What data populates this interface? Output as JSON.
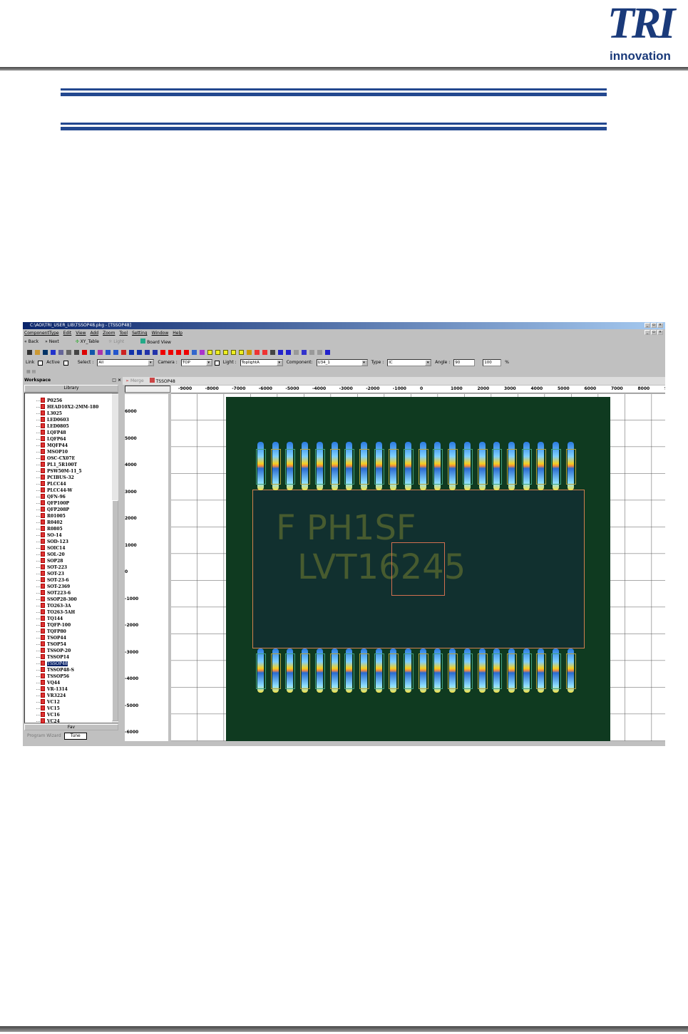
{
  "header": {
    "logo_main": "TRI",
    "logo_sub": "innovation"
  },
  "app": {
    "title": "C:\\AOI\\TRI_USER_LIB\\TSSOP48.pkg - [TSSOP48]",
    "menu": [
      "ComponentType",
      "Edit",
      "View",
      "Add",
      "Zoom",
      "Tool",
      "Setting",
      "Window",
      "Help"
    ],
    "nav": {
      "back": "Back",
      "next": "Next",
      "xy_table": "XY_Table",
      "light": "Light",
      "board_view": "Board View"
    },
    "toolbar_icons": [
      "new-icon",
      "open-icon",
      "save-icon",
      "refresh-icon",
      "cut-icon",
      "copy-icon",
      "paste-icon",
      "delete-icon",
      "move-icon",
      "clone-icon",
      "undo-icon",
      "redo-icon",
      "target-icon",
      "fit-icon",
      "fit-all-icon",
      "zoom-in-icon",
      "zoom-out-icon",
      "arrow-up-icon",
      "arrow-down-icon",
      "arrow-left-icon",
      "arrow-right-icon",
      "group-icon",
      "link-icon",
      "box1-icon",
      "box2-icon",
      "box3-icon",
      "box4-icon",
      "box5-icon",
      "draw-icon",
      "measure-icon",
      "pin-icon",
      "copy-pad-icon",
      "pl-icon",
      "percent-icon",
      "m-icon",
      "xy-icon",
      "expand-icon",
      "collapse-icon",
      "cursor-icon"
    ],
    "fields": {
      "link": "Link",
      "active": "Active",
      "select_label": "Select :",
      "select_value": "All",
      "camera_label": "Camera :",
      "camera_value": "TOP",
      "light_label": "Light :",
      "light_value": "ToplightA",
      "component_label": "Component:",
      "component_value": "U34_1",
      "type_label": "Type :",
      "type_value": "IC",
      "angle_label": "Angle :",
      "angle_value": "90",
      "scale_value": "100",
      "scale_unit": "%"
    },
    "workspace": {
      "title": "Workspace",
      "library": "Library",
      "fav": "Fav",
      "tabs": [
        "Program Wizard",
        "Tune"
      ],
      "items": [
        "P0256",
        "HEAD10X2-2MM-180",
        "L3025",
        "LED0603",
        "LED0805",
        "LQFP48",
        "LQFP64",
        "MQFP44",
        "MSOP10",
        "OSC-CX07E",
        "PL1_5R100T",
        "PSW50M-11_5",
        "PCIBUS-32",
        "PLCC44",
        "PLCC44-W",
        "QFN-96",
        "QFP100P",
        "QFP208P",
        "R01005",
        "R0402",
        "R0805",
        "SO-14",
        "SOD-123",
        "SOIC14",
        "SOL-20",
        "SOP28",
        "SOT-223",
        "SOT-23",
        "SOT-23-6",
        "SOT-2369",
        "SOT223-6",
        "SSOP28-300",
        "TO263-3A",
        "TO263-5AH",
        "TQ144",
        "TQFP-100",
        "TQFP80",
        "TSOP44",
        "TSOP54",
        "TSSOP-20",
        "TSSOP14",
        "TSSOP48",
        "TSSOP48-S",
        "TSSOP56",
        "VQ44",
        "VR-1314",
        "VR3224",
        "VC12",
        "VC15",
        "VC16",
        "VC24"
      ],
      "selected": "TSSOP48"
    },
    "doc_tabs": [
      "Merge",
      "TSSOP48"
    ],
    "ruler_x": [
      "-9000",
      "-8000",
      "-7000",
      "-6000",
      "-5000",
      "-4000",
      "-3000",
      "-2000",
      "-1000",
      "0",
      "1000",
      "2000",
      "3000",
      "4000",
      "5000",
      "6000",
      "7000",
      "8000",
      "90"
    ],
    "ruler_y": [
      "6000",
      "5000",
      "4000",
      "3000",
      "2000",
      "1000",
      "0",
      "-1000",
      "-2000",
      "-3000",
      "-4000",
      "-5000",
      "-6000"
    ],
    "chip": {
      "marking_line1": "F PH1SF",
      "marking_line2": "LVT16245",
      "pins_per_side": 22
    }
  }
}
